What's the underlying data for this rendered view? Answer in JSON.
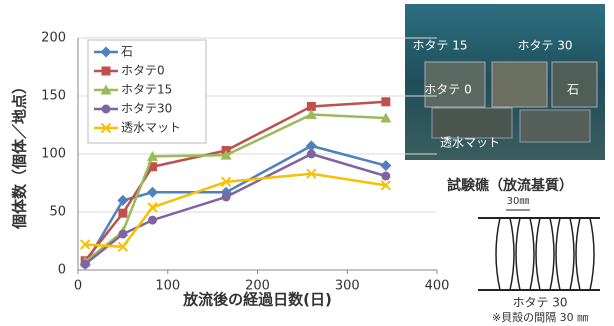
{
  "chart_data": {
    "type": "line",
    "xlabel": "放流後の経過日数(日)",
    "ylabel": "個体数（個体／地点）",
    "x": [
      8,
      50,
      83,
      165,
      260,
      343
    ],
    "series": [
      {
        "name": "石",
        "color": "#4f81bd",
        "marker": "diamond",
        "values": [
          5,
          60,
          67,
          67,
          107,
          90
        ]
      },
      {
        "name": "ホタテ0",
        "color": "#c0504d",
        "marker": "square",
        "values": [
          8,
          49,
          89,
          103,
          141,
          145
        ]
      },
      {
        "name": "ホタテ15",
        "color": "#9bbb59",
        "marker": "triangle",
        "values": [
          7,
          33,
          98,
          99,
          134,
          131
        ]
      },
      {
        "name": "ホタテ30",
        "color": "#8064a2",
        "marker": "circle",
        "values": [
          5,
          31,
          43,
          63,
          100,
          81
        ]
      },
      {
        "name": "透水マット",
        "color": "#f7c000",
        "marker": "x",
        "values": [
          22,
          20,
          54,
          76,
          83,
          73
        ]
      }
    ],
    "xlim": [
      0,
      400
    ],
    "xticks": [
      0,
      100,
      200,
      300,
      400
    ],
    "ylim": [
      0,
      200
    ],
    "yticks": [
      0,
      50,
      100,
      150,
      200
    ],
    "grid": true,
    "legend": "upper left"
  },
  "photo": {
    "labels": [
      "ホタテ 15",
      "ホタテ 30",
      "ホタテ 0",
      "石",
      "透水マット"
    ]
  },
  "diagram": {
    "caption": "試験礁（放流基質）",
    "spacing": "30㎜",
    "name": "ホタテ 30",
    "note": "※貝殻の間隔 30 ㎜"
  }
}
